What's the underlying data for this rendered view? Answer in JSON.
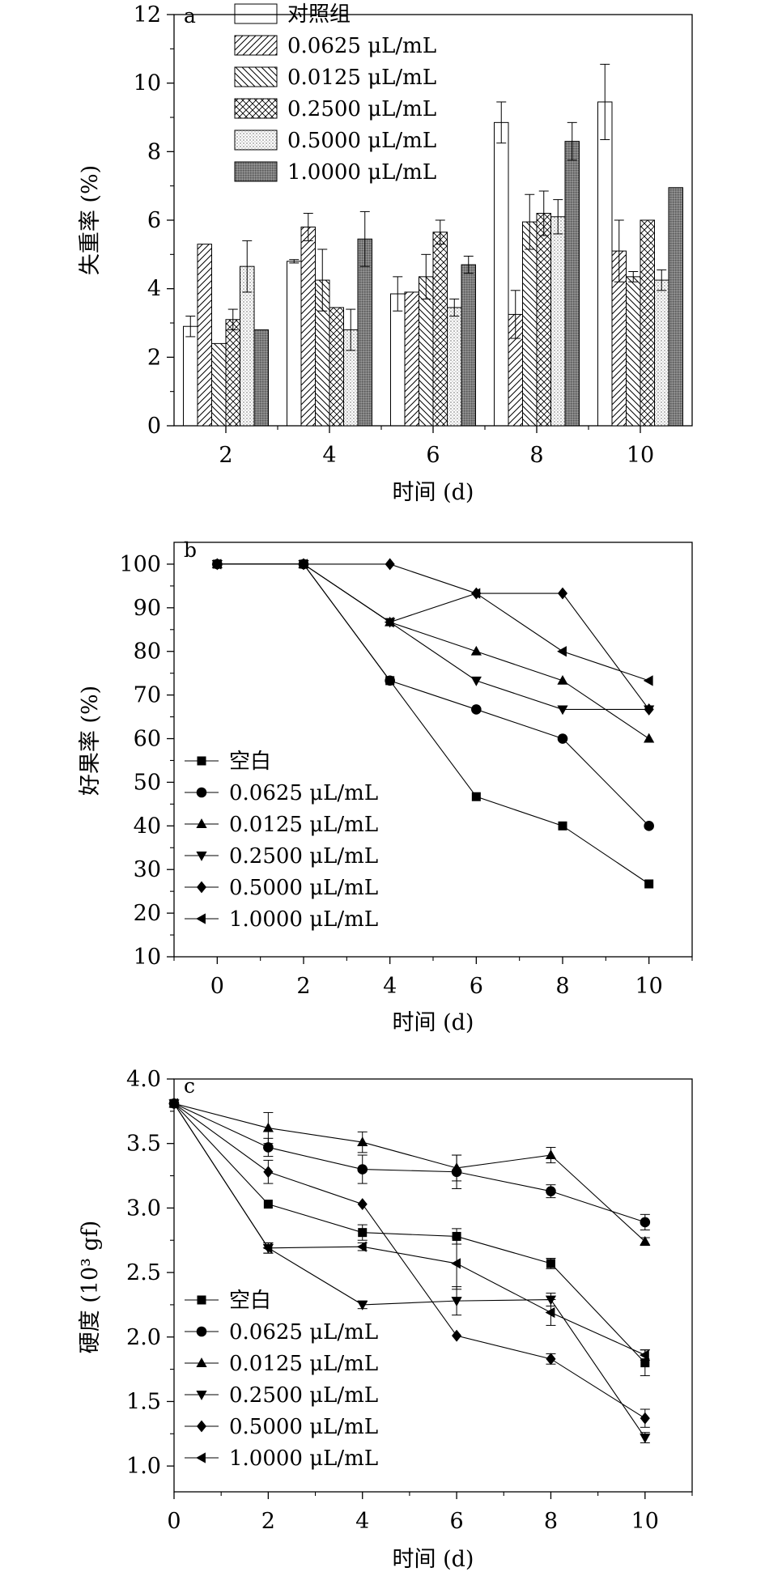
{
  "chart_data": [
    {
      "type": "bar",
      "panel_label": "a",
      "xlabel": "时间 (d)",
      "ylabel": "失重率 (%)",
      "ylim": [
        0,
        12
      ],
      "yticks": [
        0,
        2,
        4,
        6,
        8,
        10,
        12
      ],
      "categories": [
        "2",
        "4",
        "6",
        "8",
        "10"
      ],
      "legend_position": "top",
      "series": [
        {
          "name": "对照组",
          "pattern": "plain",
          "values": [
            2.9,
            4.8,
            3.85,
            8.85,
            9.45
          ],
          "errors": [
            0.3,
            0.05,
            0.5,
            0.6,
            1.1
          ]
        },
        {
          "name": "0.0625 μL/mL",
          "pattern": "diag-right",
          "values": [
            5.3,
            5.8,
            3.9,
            3.25,
            5.1
          ],
          "errors": [
            0,
            0.4,
            0,
            0.7,
            0.9
          ]
        },
        {
          "name": "0.0125 μL/mL",
          "pattern": "diag-left",
          "values": [
            2.4,
            4.25,
            4.35,
            5.95,
            4.35
          ],
          "errors": [
            0,
            0.9,
            0.65,
            0.8,
            0.15
          ]
        },
        {
          "name": "0.2500 μL/mL",
          "pattern": "cross",
          "values": [
            3.1,
            3.45,
            5.65,
            6.2,
            6.0
          ],
          "errors": [
            0.3,
            0,
            0.35,
            0.65,
            0
          ]
        },
        {
          "name": "0.5000 μL/mL",
          "pattern": "dots",
          "values": [
            4.65,
            2.8,
            3.45,
            6.1,
            4.25
          ],
          "errors": [
            0.75,
            0.6,
            0.25,
            0.5,
            0.3
          ]
        },
        {
          "name": "1.0000 μL/mL",
          "pattern": "dark",
          "values": [
            2.8,
            5.45,
            4.7,
            8.3,
            6.95
          ],
          "errors": [
            0,
            0.8,
            0.25,
            0.55,
            0
          ]
        }
      ]
    },
    {
      "type": "line",
      "panel_label": "b",
      "xlabel": "时间 (d)",
      "ylabel": "好果率 (%)",
      "xlim": [
        -1,
        11
      ],
      "ylim": [
        10,
        105
      ],
      "xticks": [
        0,
        2,
        4,
        6,
        8,
        10
      ],
      "yticks": [
        10,
        20,
        30,
        40,
        50,
        60,
        70,
        80,
        90,
        100
      ],
      "legend_position": "bottom-left",
      "x": [
        0,
        2,
        4,
        6,
        8,
        10
      ],
      "series": [
        {
          "name": "空白",
          "marker": "square",
          "values": [
            100,
            100,
            73.3,
            46.7,
            40.0,
            26.7
          ]
        },
        {
          "name": "0.0625 μL/mL",
          "marker": "circle",
          "values": [
            100,
            100,
            73.3,
            66.7,
            60.0,
            40.0
          ]
        },
        {
          "name": "0.0125 μL/mL",
          "marker": "triangle-up",
          "values": [
            100,
            100,
            86.7,
            80.0,
            73.3,
            60.0
          ]
        },
        {
          "name": "0.2500 μL/mL",
          "marker": "triangle-down",
          "values": [
            100,
            100,
            86.7,
            73.3,
            66.7,
            66.7
          ]
        },
        {
          "name": "0.5000 μL/mL",
          "marker": "diamond",
          "values": [
            100,
            100,
            100,
            93.3,
            93.3,
            66.7
          ]
        },
        {
          "name": "1.0000 μL/mL",
          "marker": "triangle-left",
          "values": [
            100,
            100,
            86.7,
            93.3,
            80.0,
            73.3
          ]
        }
      ]
    },
    {
      "type": "line",
      "panel_label": "c",
      "xlabel": "时间 (d)",
      "ylabel": "硬度 (10³ gf)",
      "xlim": [
        0,
        11
      ],
      "ylim": [
        0.8,
        4.0
      ],
      "xticks": [
        0,
        2,
        4,
        6,
        8,
        10
      ],
      "yticks": [
        1.0,
        1.5,
        2.0,
        2.5,
        3.0,
        3.5,
        4.0
      ],
      "legend_position": "bottom-left",
      "x": [
        0,
        2,
        4,
        6,
        8,
        10
      ],
      "series": [
        {
          "name": "空白",
          "marker": "square",
          "values": [
            3.81,
            3.03,
            2.81,
            2.78,
            2.57,
            1.8
          ],
          "errors": [
            0,
            0,
            0.06,
            0.06,
            0.04,
            0.1
          ]
        },
        {
          "name": "0.0625 μL/mL",
          "marker": "circle",
          "values": [
            3.81,
            3.47,
            3.3,
            3.28,
            3.13,
            2.89
          ],
          "errors": [
            0,
            0.07,
            0.11,
            0.13,
            0.05,
            0.06
          ]
        },
        {
          "name": "0.0125 μL/mL",
          "marker": "triangle-up",
          "values": [
            3.81,
            3.62,
            3.51,
            3.31,
            3.41,
            2.74
          ],
          "errors": [
            0,
            0.12,
            0.08,
            0.1,
            0.06,
            0.03
          ]
        },
        {
          "name": "0.2500 μL/mL",
          "marker": "triangle-down",
          "values": [
            3.81,
            2.69,
            2.25,
            2.28,
            2.29,
            1.22
          ],
          "errors": [
            0,
            0.04,
            0.03,
            0.11,
            0.05,
            0.04
          ]
        },
        {
          "name": "0.5000 μL/mL",
          "marker": "diamond",
          "values": [
            3.81,
            3.28,
            3.03,
            2.01,
            1.83,
            1.37
          ],
          "errors": [
            0,
            0.09,
            0,
            0,
            0.04,
            0.07
          ]
        },
        {
          "name": "1.0000 μL/mL",
          "marker": "triangle-left",
          "values": [
            3.81,
            2.69,
            2.7,
            2.57,
            2.19,
            1.86
          ],
          "errors": [
            0,
            0.04,
            0.03,
            0.2,
            0.1,
            0.04
          ]
        }
      ]
    }
  ]
}
